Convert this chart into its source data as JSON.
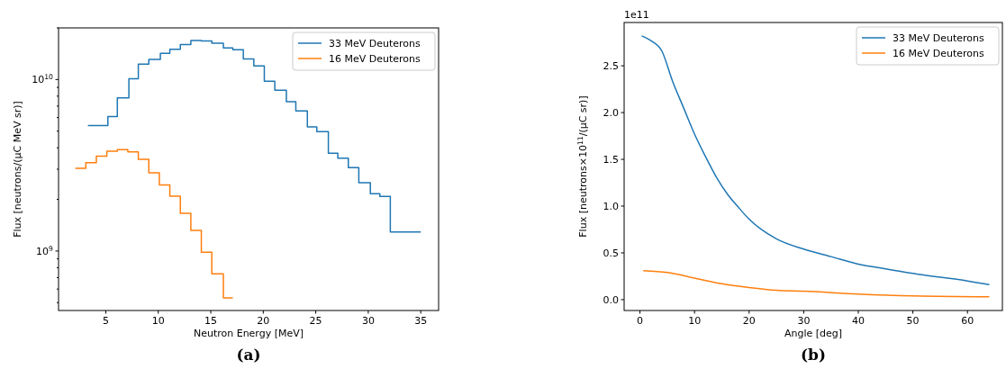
{
  "chart_data": [
    {
      "type": "step",
      "title": "(a)",
      "xlabel": "Neutron Energy [MeV]",
      "ylabel": "Flux [neutrons/(μC MeV sr)]",
      "log": "y",
      "legend": "top right",
      "xlim": [
        0.5,
        36.7
      ],
      "xticks": [
        5,
        10,
        15,
        20,
        25,
        30,
        35
      ],
      "ylim": [
        450000000,
        20000000000
      ],
      "yticks": [
        {
          "value": 500000000,
          "label": null
        },
        {
          "value": 600000000,
          "label": null
        },
        {
          "value": 700000000,
          "label": null
        },
        {
          "value": 800000000,
          "label": null
        },
        {
          "value": 900000000,
          "label": null
        },
        {
          "value": 1000000000,
          "label": "10$^{9}$"
        },
        {
          "value": 2000000000,
          "label": null
        },
        {
          "value": 3000000000,
          "label": null
        },
        {
          "value": 4000000000,
          "label": null
        },
        {
          "value": 5000000000,
          "label": null
        },
        {
          "value": 6000000000,
          "label": null
        },
        {
          "value": 7000000000,
          "label": null
        },
        {
          "value": 8000000000,
          "label": null
        },
        {
          "value": 9000000000,
          "label": null
        },
        {
          "value": 10000000000,
          "label": "10$^{10}$"
        },
        {
          "value": 20000000000,
          "label": null
        }
      ],
      "series": [
        {
          "name": "33 MeV Deuterons",
          "color": "#1f77b4",
          "x": [
            3.3,
            5.2,
            6.1,
            7.2,
            8.1,
            9.1,
            10.2,
            11.1,
            12.1,
            13.1,
            14.1,
            15.1,
            16.2,
            17.1,
            18.1,
            19.1,
            20.1,
            21.1,
            22.2,
            23.1,
            24.2,
            25.1,
            26.2,
            27.1,
            28.1,
            29.1,
            30.2,
            31.1,
            32.1,
            35
          ],
          "values": [
            5390000000,
            6080000000,
            7820000000,
            10100000000,
            12300000000,
            13100000000,
            14200000000,
            15000000000,
            16000000000,
            16900000000,
            16800000000,
            16300000000,
            15300000000,
            14900000000,
            13200000000,
            12000000000,
            9760000000,
            8650000000,
            7420000000,
            6570000000,
            5300000000,
            4970000000,
            3720000000,
            3480000000,
            3060000000,
            2500000000,
            2160000000,
            2080000000,
            1290000000,
            1290000000
          ]
        },
        {
          "name": "16 MeV Deuterons",
          "color": "#ff7f0e",
          "x": [
            2.1,
            3.1,
            4.1,
            5.1,
            6.1,
            7.1,
            8.1,
            9.1,
            10.1,
            11.1,
            12.1,
            13.1,
            14.1,
            15.1,
            16.2,
            17.1
          ],
          "values": [
            3040000000,
            3270000000,
            3570000000,
            3820000000,
            3900000000,
            3780000000,
            3430000000,
            2860000000,
            2430000000,
            2090000000,
            1660000000,
            1320000000,
            984000000,
            736000000,
            533000000,
            533000000
          ]
        }
      ]
    },
    {
      "type": "line",
      "title": "(b)",
      "xlabel": "Angle [deg]",
      "ylabel": "Flux [neutrons×10$^{11}$/(μC sr)]",
      "annotations": [
        "1e11"
      ],
      "legend": "top right",
      "xlim": [
        -2.9,
        66.4
      ],
      "xticks": [
        0,
        10,
        20,
        30,
        40,
        50,
        60
      ],
      "ylim": [
        -0.116,
        2.963
      ],
      "yticks": [
        {
          "value": 0,
          "label": "0.0"
        },
        0.5,
        {
          "value": 1,
          "label": "1.0"
        },
        1.5,
        {
          "value": 2,
          "label": "2.0"
        },
        2.5
      ],
      "series": [
        {
          "name": "33 MeV Deuterons",
          "color": "#1f77b4",
          "x": [
            0.3,
            2,
            4,
            6,
            8,
            10,
            12,
            14,
            16,
            18,
            20,
            25,
            30,
            35,
            40,
            45,
            50,
            55,
            60,
            64
          ],
          "values": [
            2.82,
            2.77,
            2.66,
            2.33,
            2.05,
            1.77,
            1.53,
            1.31,
            1.13,
            0.99,
            0.86,
            0.65,
            0.54,
            0.46,
            0.38,
            0.33,
            0.28,
            0.24,
            0.2,
            0.16
          ]
        },
        {
          "name": "16 MeV Deuterons",
          "color": "#ff7f0e",
          "x": [
            0.6,
            5,
            10,
            15,
            20,
            25,
            30,
            40,
            50,
            64
          ],
          "values": [
            0.31,
            0.29,
            0.23,
            0.17,
            0.13,
            0.1,
            0.09,
            0.06,
            0.04,
            0.03
          ]
        }
      ]
    }
  ]
}
